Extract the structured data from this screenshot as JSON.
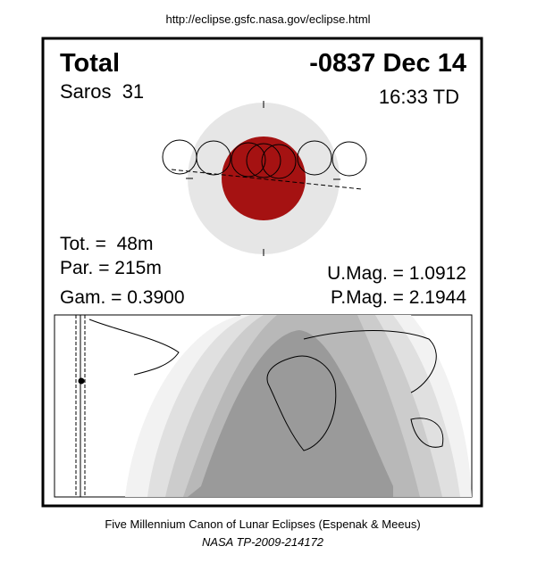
{
  "url": "http://eclipse.gsfc.nasa.gov/eclipse.html",
  "eclipse": {
    "type": "Total",
    "date": "-0837 Dec 14",
    "saros": "Saros  31",
    "time": "16:33 TD"
  },
  "stats": {
    "tot": "Tot. =  48m",
    "par": "Par. = 215m",
    "gam": "Gam. = 0.3900",
    "umag": "U.Mag. = 1.0912",
    "pmag": "P.Mag. = 2.1944"
  },
  "footer": {
    "canon": "Five Millennium Canon of Lunar Eclipses (Espenak & Meeus)",
    "publication": "NASA TP-2009-214172"
  }
}
